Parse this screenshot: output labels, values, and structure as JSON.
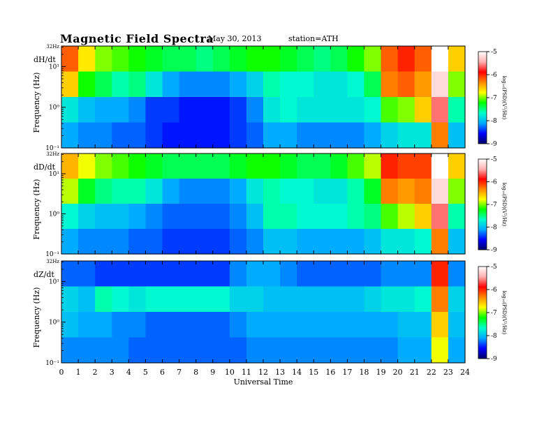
{
  "header": {
    "title": "Magnetic  Field  Spectra",
    "date": "May 30, 2013",
    "station": "station=ATH"
  },
  "chart_data": {
    "type": "heatmap",
    "title": "Magnetic  Field  Spectra",
    "xlabel": "Universal Time",
    "x_ticks": [
      "0",
      "1",
      "2",
      "3",
      "4",
      "5",
      "6",
      "7",
      "8",
      "9",
      "10",
      "11",
      "12",
      "13",
      "14",
      "15",
      "16",
      "17",
      "18",
      "19",
      "20",
      "21",
      "22",
      "23",
      "24"
    ],
    "xlim": [
      0,
      24
    ],
    "y_scale": "log",
    "ylim": [
      0.1,
      32
    ],
    "colorbar": {
      "label": "log₁₀(PSD)(V²/Hz)",
      "ticks": [
        "-5",
        "-6",
        "-7",
        "-8",
        "-9"
      ],
      "range": [
        -9,
        -5
      ],
      "colors": [
        "#000066",
        "#0000ff",
        "#00aaff",
        "#00ffcc",
        "#00ff00",
        "#ffff00",
        "#ff8800",
        "#ff0000",
        "#ffb0b0",
        "#ffffff"
      ]
    },
    "panels": [
      {
        "component": "dH/dt",
        "ylabel": "Frequency  (Hz)",
        "y_ticks": [
          {
            "label": "32Hz",
            "value": 32
          },
          {
            "label": "10¹",
            "value": 10
          },
          {
            "label": "10⁰",
            "value": 1
          },
          {
            "label": "10⁻¹",
            "value": 0.1
          }
        ],
        "grid": [
          [
            -6.2,
            -6.7,
            -7,
            -7.1,
            -7.2,
            -7.3,
            -7.4,
            -7.4,
            -7.5,
            -7.4,
            -7.3,
            -7.2,
            -7.2,
            -7.3,
            -7.4,
            -7.5,
            -7.4,
            -7.2,
            -7,
            -6.2,
            -6,
            -6.2,
            -5,
            -6.6
          ],
          [
            -6.6,
            -7.2,
            -7.4,
            -7.6,
            -7.5,
            -7.8,
            -8.1,
            -8.2,
            -8.2,
            -8.2,
            -8.1,
            -7.9,
            -7.6,
            -7.7,
            -7.7,
            -7.8,
            -7.8,
            -7.7,
            -7.4,
            -6.3,
            -6.2,
            -6.4,
            -5.2,
            -7
          ],
          [
            -7.8,
            -8,
            -8.1,
            -8.1,
            -8.2,
            -8.4,
            -8.4,
            -8.5,
            -8.5,
            -8.5,
            -8.4,
            -8.2,
            -7.8,
            -7.7,
            -7.8,
            -7.8,
            -7.8,
            -7.8,
            -7.7,
            -7.1,
            -7,
            -6.6,
            -5.6,
            -7.6
          ],
          [
            -8.1,
            -8.2,
            -8.2,
            -8.3,
            -8.3,
            -8.4,
            -8.5,
            -8.5,
            -8.5,
            -8.5,
            -8.4,
            -8.3,
            -8.1,
            -8.1,
            -8.2,
            -8.2,
            -8.2,
            -8.2,
            -8.1,
            -7.9,
            -7.8,
            -7.8,
            -6.3,
            -8
          ]
        ]
      },
      {
        "component": "dD/dt",
        "ylabel": "Frequency  (Hz)",
        "y_ticks": [
          {
            "label": "32Hz",
            "value": 32
          },
          {
            "label": "10¹",
            "value": 10
          },
          {
            "label": "10⁰",
            "value": 1
          },
          {
            "label": "10⁻¹",
            "value": 0.1
          }
        ],
        "grid": [
          [
            -6.5,
            -6.8,
            -7,
            -7.1,
            -7.2,
            -7.3,
            -7.4,
            -7.4,
            -7.4,
            -7.4,
            -7.3,
            -7.2,
            -7.2,
            -7.3,
            -7.4,
            -7.4,
            -7.3,
            -7.1,
            -6.9,
            -6,
            -6.1,
            -6.1,
            -5,
            -6.6
          ],
          [
            -6.9,
            -7.3,
            -7.5,
            -7.6,
            -7.6,
            -7.8,
            -8.1,
            -8.2,
            -8.2,
            -8.2,
            -8.1,
            -7.8,
            -7.6,
            -7.7,
            -7.7,
            -7.8,
            -7.8,
            -7.6,
            -7.3,
            -6.3,
            -6.4,
            -6.3,
            -5.2,
            -7
          ],
          [
            -7.7,
            -7.9,
            -8,
            -8,
            -8.1,
            -8.2,
            -8.3,
            -8.3,
            -8.3,
            -8.3,
            -8.2,
            -8,
            -7.6,
            -7.6,
            -7.7,
            -7.7,
            -7.7,
            -7.6,
            -7.5,
            -7.1,
            -6.9,
            -6.6,
            -5.6,
            -7.6
          ],
          [
            -8.1,
            -8.2,
            -8.2,
            -8.2,
            -8.3,
            -8.3,
            -8.4,
            -8.4,
            -8.4,
            -8.4,
            -8.3,
            -8.2,
            -8,
            -8,
            -8.1,
            -8.1,
            -8.1,
            -8.1,
            -8,
            -7.8,
            -7.8,
            -7.7,
            -6.3,
            -8
          ]
        ]
      },
      {
        "component": "dZ/dt",
        "ylabel": "Frequency  (Hz)",
        "y_ticks": [
          {
            "label": "32Hz",
            "value": 32
          },
          {
            "label": "10¹",
            "value": 10
          },
          {
            "label": "10⁰",
            "value": 1
          },
          {
            "label": "10⁻¹",
            "value": 0.1
          }
        ],
        "grid": [
          [
            -8.3,
            -8.3,
            -8.4,
            -8.4,
            -8.4,
            -8.4,
            -8.4,
            -8.4,
            -8.4,
            -8.4,
            -8.2,
            -8.1,
            -8.1,
            -8.2,
            -8.3,
            -8.3,
            -8.3,
            -8.3,
            -8.3,
            -8.2,
            -8.2,
            -8.2,
            -6,
            -8.2
          ],
          [
            -7.9,
            -8,
            -7.6,
            -7.7,
            -7.8,
            -7.7,
            -7.7,
            -7.7,
            -7.7,
            -7.7,
            -7.9,
            -7.9,
            -8,
            -8,
            -8,
            -8,
            -8,
            -8,
            -7.9,
            -7.8,
            -7.8,
            -7.7,
            -6.3,
            -7.9
          ],
          [
            -8,
            -8.1,
            -8.1,
            -8.2,
            -8.2,
            -8.3,
            -8.3,
            -8.3,
            -8.3,
            -8.3,
            -8.2,
            -8.1,
            -8.1,
            -8.1,
            -8.1,
            -8.1,
            -8.1,
            -8.1,
            -8.1,
            -8.1,
            -8,
            -8,
            -6.6,
            -8
          ],
          [
            -8.2,
            -8.2,
            -8.2,
            -8.2,
            -8.3,
            -8.3,
            -8.3,
            -8.3,
            -8.3,
            -8.3,
            -8.3,
            -8.2,
            -8.2,
            -8.2,
            -8.2,
            -8.2,
            -8.2,
            -8.2,
            -8.2,
            -8.2,
            -8.1,
            -8.1,
            -6.8,
            -8.1
          ]
        ]
      }
    ]
  }
}
